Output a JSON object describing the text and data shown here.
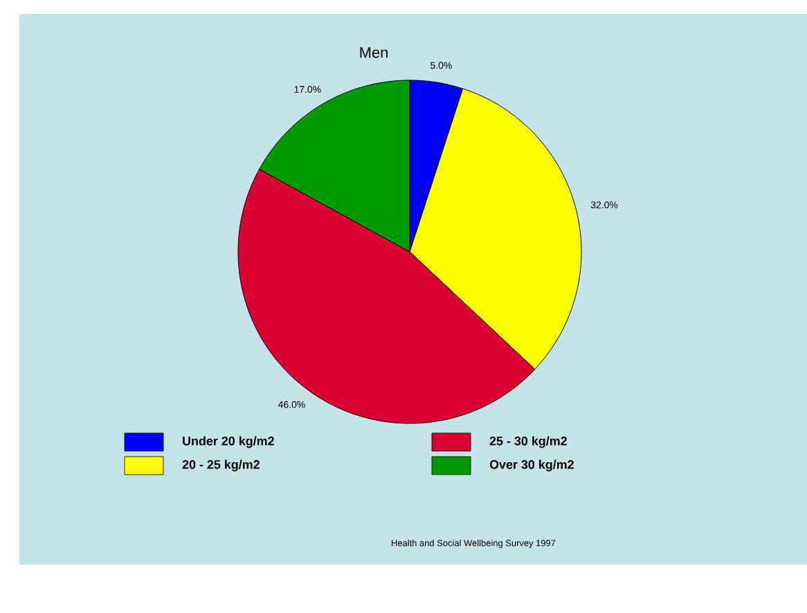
{
  "chart_data": {
    "type": "pie",
    "title": "Men",
    "categories": [
      "Under 20 kg/m2",
      "20 - 25 kg/m2",
      "25 - 30 kg/m2",
      "Over 30 kg/m2"
    ],
    "values": [
      5,
      32,
      46,
      17
    ],
    "colors": [
      "#0000ff",
      "#ffff00",
      "#dc0032",
      "#009900"
    ],
    "value_labels": [
      "5.0%",
      "32.0%",
      "46.0%",
      "17.0%"
    ],
    "legend": "bottom",
    "annotations": [
      "Health and Social Wellbeing Survey 1997"
    ]
  }
}
